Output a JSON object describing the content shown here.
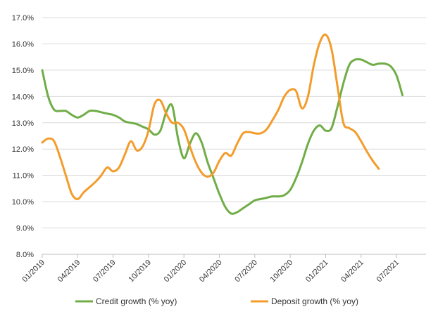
{
  "chart_data": {
    "type": "line",
    "title": "",
    "xlabel": "",
    "ylabel": "",
    "ylim": [
      8.0,
      17.0
    ],
    "grid": true,
    "legend_position": "bottom",
    "y_ticks": [
      "8.0%",
      "9.0%",
      "10.0%",
      "11.0%",
      "12.0%",
      "13.0%",
      "14.0%",
      "15.0%",
      "16.0%",
      "17.0%"
    ],
    "x_ticks": [
      {
        "label": "01/2019",
        "month": 0
      },
      {
        "label": "04/2019",
        "month": 3
      },
      {
        "label": "07/2019",
        "month": 6
      },
      {
        "label": "10/2019",
        "month": 9
      },
      {
        "label": "01/2020",
        "month": 12
      },
      {
        "label": "04/2020",
        "month": 15
      },
      {
        "label": "07/2020",
        "month": 18
      },
      {
        "label": "10/2020",
        "month": 21
      },
      {
        "label": "01/2021",
        "month": 24
      },
      {
        "label": "04/2021",
        "month": 27
      },
      {
        "label": "07/2021",
        "month": 30
      }
    ],
    "series": [
      {
        "name": "Credit growth (% yoy)",
        "color": "#70AD47",
        "points": [
          [
            0.0,
            15.0
          ],
          [
            0.5,
            14.0
          ],
          [
            1.0,
            13.5
          ],
          [
            1.5,
            13.45
          ],
          [
            2.0,
            13.45
          ],
          [
            2.5,
            13.3
          ],
          [
            3.0,
            13.2
          ],
          [
            3.5,
            13.3
          ],
          [
            4.0,
            13.45
          ],
          [
            4.5,
            13.45
          ],
          [
            5.0,
            13.4
          ],
          [
            5.5,
            13.35
          ],
          [
            6.0,
            13.3
          ],
          [
            6.5,
            13.2
          ],
          [
            7.0,
            13.05
          ],
          [
            7.5,
            13.0
          ],
          [
            8.0,
            12.95
          ],
          [
            8.5,
            12.85
          ],
          [
            9.0,
            12.75
          ],
          [
            9.5,
            12.55
          ],
          [
            10.0,
            12.7
          ],
          [
            10.5,
            13.4
          ],
          [
            11.0,
            13.65
          ],
          [
            11.5,
            12.4
          ],
          [
            12.0,
            11.65
          ],
          [
            12.5,
            12.2
          ],
          [
            13.0,
            12.6
          ],
          [
            13.5,
            12.25
          ],
          [
            14.0,
            11.5
          ],
          [
            14.5,
            10.9
          ],
          [
            15.0,
            10.3
          ],
          [
            15.5,
            9.8
          ],
          [
            16.0,
            9.55
          ],
          [
            16.5,
            9.6
          ],
          [
            17.0,
            9.75
          ],
          [
            17.5,
            9.9
          ],
          [
            18.0,
            10.05
          ],
          [
            18.5,
            10.1
          ],
          [
            19.0,
            10.15
          ],
          [
            19.5,
            10.2
          ],
          [
            20.0,
            10.2
          ],
          [
            20.5,
            10.25
          ],
          [
            21.0,
            10.45
          ],
          [
            21.5,
            10.9
          ],
          [
            22.0,
            11.5
          ],
          [
            22.5,
            12.2
          ],
          [
            23.0,
            12.7
          ],
          [
            23.5,
            12.9
          ],
          [
            24.0,
            12.7
          ],
          [
            24.5,
            12.8
          ],
          [
            25.0,
            13.6
          ],
          [
            25.5,
            14.5
          ],
          [
            26.0,
            15.2
          ],
          [
            26.5,
            15.4
          ],
          [
            27.0,
            15.4
          ],
          [
            27.5,
            15.3
          ],
          [
            28.0,
            15.2
          ],
          [
            28.5,
            15.25
          ],
          [
            29.0,
            15.25
          ],
          [
            29.5,
            15.15
          ],
          [
            30.0,
            14.8
          ],
          [
            30.5,
            14.05
          ]
        ]
      },
      {
        "name": "Deposit growth (% yoy)",
        "color": "#F39C2B",
        "points": [
          [
            0.0,
            12.25
          ],
          [
            0.5,
            12.4
          ],
          [
            1.0,
            12.3
          ],
          [
            1.5,
            11.7
          ],
          [
            2.0,
            11.0
          ],
          [
            2.5,
            10.3
          ],
          [
            3.0,
            10.1
          ],
          [
            3.5,
            10.35
          ],
          [
            4.0,
            10.55
          ],
          [
            4.5,
            10.75
          ],
          [
            5.0,
            11.0
          ],
          [
            5.5,
            11.3
          ],
          [
            6.0,
            11.15
          ],
          [
            6.5,
            11.3
          ],
          [
            7.0,
            11.8
          ],
          [
            7.5,
            12.3
          ],
          [
            8.0,
            11.95
          ],
          [
            8.5,
            12.1
          ],
          [
            9.0,
            12.7
          ],
          [
            9.5,
            13.7
          ],
          [
            10.0,
            13.85
          ],
          [
            10.5,
            13.35
          ],
          [
            11.0,
            13.0
          ],
          [
            11.5,
            13.0
          ],
          [
            12.0,
            12.75
          ],
          [
            12.5,
            12.1
          ],
          [
            13.0,
            11.5
          ],
          [
            13.5,
            11.1
          ],
          [
            14.0,
            10.95
          ],
          [
            14.5,
            11.1
          ],
          [
            15.0,
            11.55
          ],
          [
            15.5,
            11.85
          ],
          [
            16.0,
            11.75
          ],
          [
            16.5,
            12.2
          ],
          [
            17.0,
            12.6
          ],
          [
            17.5,
            12.65
          ],
          [
            18.0,
            12.6
          ],
          [
            18.5,
            12.6
          ],
          [
            19.0,
            12.75
          ],
          [
            19.5,
            13.1
          ],
          [
            20.0,
            13.5
          ],
          [
            20.5,
            14.0
          ],
          [
            21.0,
            14.25
          ],
          [
            21.5,
            14.2
          ],
          [
            22.0,
            13.55
          ],
          [
            22.5,
            14.0
          ],
          [
            23.0,
            15.2
          ],
          [
            23.5,
            16.05
          ],
          [
            24.0,
            16.35
          ],
          [
            24.5,
            15.8
          ],
          [
            25.0,
            14.4
          ],
          [
            25.5,
            13.0
          ],
          [
            26.0,
            12.8
          ],
          [
            26.5,
            12.65
          ],
          [
            27.0,
            12.3
          ],
          [
            27.5,
            11.9
          ],
          [
            28.0,
            11.55
          ],
          [
            28.5,
            11.25
          ]
        ]
      }
    ]
  }
}
